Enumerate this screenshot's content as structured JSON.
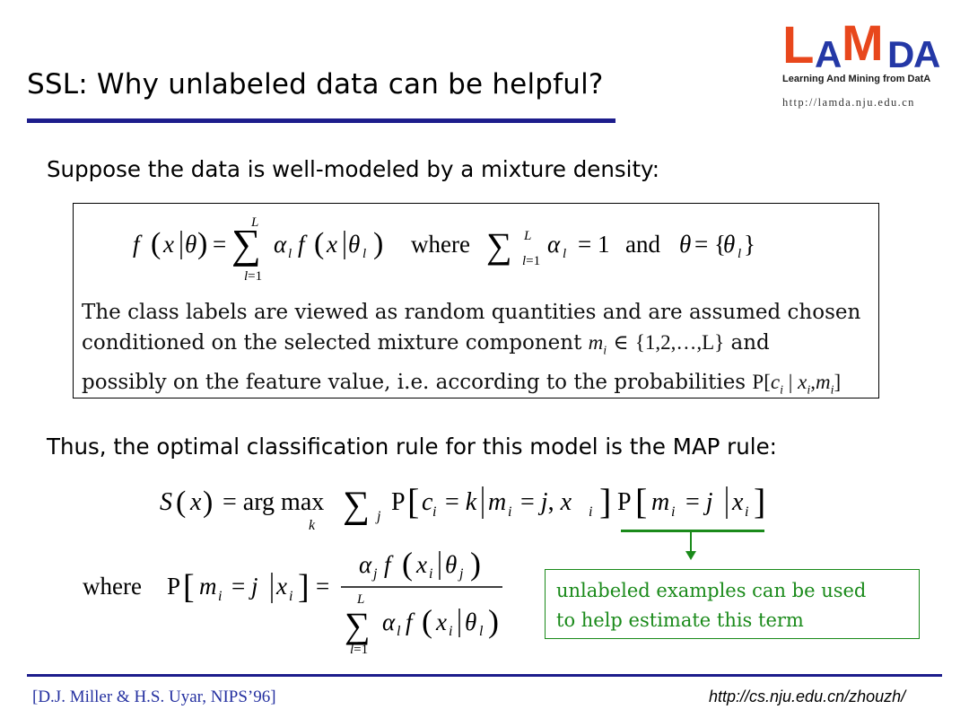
{
  "slide": {
    "title": "SSL: Why unlabeled data can be helpful?"
  },
  "logo": {
    "letters": [
      "L",
      "A",
      "M",
      "D",
      "A"
    ],
    "tagline": "Learning And Mining from DatA",
    "url": "http://lamda.nju.edu.cn",
    "colors": {
      "orange": "#e8471c",
      "blue": "#2438a6"
    }
  },
  "content": {
    "intro": "Suppose the data is well-modeled by a mixture density:",
    "box": {
      "where": "where",
      "and": "and",
      "line1": "The class labels are viewed as random quantities and are assumed chosen",
      "line2a": "conditioned on the selected mixture component ",
      "line2b": " and",
      "line3a": "possibly on the feature value, i.e. according to the probabilities ",
      "set": "{1,2,…,L}"
    },
    "map_intro": "Thus, the optimal classification rule for this model is the MAP rule:",
    "where2": "where",
    "annotation": {
      "line1": "unlabeled examples can be used",
      "line2": "to help estimate this term",
      "color": "#1a8a1a"
    }
  },
  "footer": {
    "citation": "[D.J. Miller & H.S. Uyar, NIPS’96]",
    "url": "http://cs.nju.edu.cn/zhouzh/"
  }
}
